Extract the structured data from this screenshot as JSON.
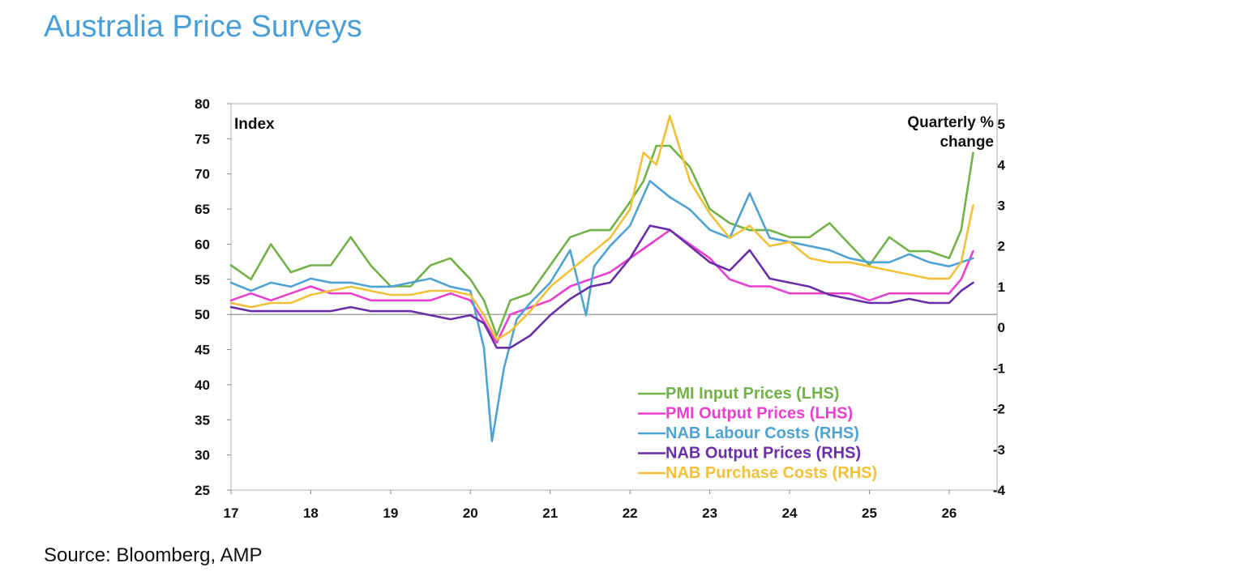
{
  "page": {
    "title": "Australia Price Surveys",
    "source": "Source: Bloomberg, AMP"
  },
  "chart_data": {
    "type": "line",
    "title": "",
    "left_axis_label": "Index",
    "right_axis_label": [
      "Quarterly %",
      "change"
    ],
    "x_ticks": [
      "17",
      "18",
      "19",
      "20",
      "21",
      "22",
      "23",
      "24",
      "25",
      "26"
    ],
    "x_range": [
      2017,
      2026.6
    ],
    "ylim_left": [
      25,
      80
    ],
    "y_ticks_left": [
      25,
      30,
      35,
      40,
      45,
      50,
      55,
      60,
      65,
      70,
      75,
      80
    ],
    "ylim_right": [
      -4,
      5.5
    ],
    "y_ticks_right": [
      -4,
      -3,
      -2,
      -1,
      0,
      1,
      2,
      3,
      4,
      5
    ],
    "grid": false,
    "legend_position": "bottom-right",
    "colors": {
      "pmi_input": "#72b248",
      "pmi_output": "#e93fcf",
      "nab_labour": "#4ea3d3",
      "nab_output": "#6a2fa6",
      "nab_purchase": "#f2c13a"
    },
    "series": [
      {
        "key": "pmi_input",
        "name": "PMI Input Prices (LHS)",
        "axis": "left",
        "color": "#72b248",
        "x": [
          2017.0,
          2017.25,
          2017.5,
          2017.75,
          2018.0,
          2018.25,
          2018.5,
          2018.75,
          2019.0,
          2019.25,
          2019.5,
          2019.75,
          2020.0,
          2020.17,
          2020.33,
          2020.5,
          2020.75,
          2021.0,
          2021.25,
          2021.5,
          2021.75,
          2022.0,
          2022.17,
          2022.33,
          2022.5,
          2022.75,
          2023.0,
          2023.25,
          2023.5,
          2023.75,
          2024.0,
          2024.25,
          2024.5,
          2024.75,
          2025.0,
          2025.25,
          2025.5,
          2025.75,
          2026.0,
          2026.15,
          2026.3
        ],
        "y": [
          57,
          55,
          60,
          56,
          57,
          57,
          61,
          57,
          54,
          54,
          57,
          58,
          55,
          52,
          47,
          52,
          53,
          57,
          61,
          62,
          62,
          66,
          69,
          74,
          74,
          71,
          65,
          63,
          62,
          62,
          61,
          61,
          63,
          60,
          57,
          61,
          59,
          59,
          58,
          62,
          73
        ]
      },
      {
        "key": "pmi_output",
        "name": "PMI Output Prices (LHS)",
        "axis": "left",
        "color": "#e93fcf",
        "x": [
          2017.0,
          2017.25,
          2017.5,
          2017.75,
          2018.0,
          2018.25,
          2018.5,
          2018.75,
          2019.0,
          2019.25,
          2019.5,
          2019.75,
          2020.0,
          2020.17,
          2020.33,
          2020.5,
          2020.75,
          2021.0,
          2021.25,
          2021.5,
          2021.75,
          2022.0,
          2022.25,
          2022.5,
          2022.75,
          2023.0,
          2023.25,
          2023.5,
          2023.75,
          2024.0,
          2024.25,
          2024.5,
          2024.75,
          2025.0,
          2025.25,
          2025.5,
          2025.75,
          2026.0,
          2026.15,
          2026.3
        ],
        "y": [
          52,
          53,
          52,
          53,
          54,
          53,
          53,
          52,
          52,
          52,
          52,
          53,
          52,
          49,
          46,
          50,
          51,
          52,
          54,
          55,
          56,
          58,
          60,
          62,
          60,
          58,
          55,
          54,
          54,
          53,
          53,
          53,
          53,
          52,
          53,
          53,
          53,
          53,
          55,
          59
        ]
      },
      {
        "key": "nab_labour",
        "name": "NAB Labour Costs (RHS)",
        "axis": "right",
        "color": "#4ea3d3",
        "x": [
          2017.0,
          2017.25,
          2017.5,
          2017.75,
          2018.0,
          2018.25,
          2018.5,
          2018.75,
          2019.0,
          2019.25,
          2019.5,
          2019.75,
          2020.0,
          2020.17,
          2020.27,
          2020.42,
          2020.58,
          2020.75,
          2021.0,
          2021.25,
          2021.45,
          2021.55,
          2021.75,
          2022.0,
          2022.25,
          2022.5,
          2022.75,
          2023.0,
          2023.25,
          2023.5,
          2023.75,
          2024.0,
          2024.25,
          2024.5,
          2024.75,
          2025.0,
          2025.25,
          2025.5,
          2025.75,
          2026.0,
          2026.15,
          2026.3
        ],
        "y": [
          1.1,
          0.9,
          1.1,
          1.0,
          1.2,
          1.1,
          1.1,
          1.0,
          1.0,
          1.1,
          1.2,
          1.0,
          0.9,
          -0.5,
          -2.8,
          -1.0,
          0.2,
          0.6,
          1.1,
          1.9,
          0.3,
          1.5,
          2.0,
          2.5,
          3.6,
          3.2,
          2.9,
          2.4,
          2.2,
          3.3,
          2.2,
          2.1,
          2.0,
          1.9,
          1.7,
          1.6,
          1.6,
          1.8,
          1.6,
          1.5,
          1.6,
          1.7
        ]
      },
      {
        "key": "nab_output",
        "name": "NAB Output Prices (RHS)",
        "axis": "right",
        "color": "#6a2fa6",
        "x": [
          2017.0,
          2017.25,
          2017.5,
          2017.75,
          2018.0,
          2018.25,
          2018.5,
          2018.75,
          2019.0,
          2019.25,
          2019.5,
          2019.75,
          2020.0,
          2020.17,
          2020.33,
          2020.5,
          2020.75,
          2021.0,
          2021.25,
          2021.5,
          2021.75,
          2022.0,
          2022.25,
          2022.5,
          2022.75,
          2023.0,
          2023.25,
          2023.5,
          2023.75,
          2024.0,
          2024.25,
          2024.5,
          2024.75,
          2025.0,
          2025.25,
          2025.5,
          2025.75,
          2026.0,
          2026.15,
          2026.3
        ],
        "y": [
          0.5,
          0.4,
          0.4,
          0.4,
          0.4,
          0.4,
          0.5,
          0.4,
          0.4,
          0.4,
          0.3,
          0.2,
          0.3,
          0.1,
          -0.5,
          -0.5,
          -0.2,
          0.3,
          0.7,
          1.0,
          1.1,
          1.7,
          2.5,
          2.4,
          2.0,
          1.6,
          1.4,
          1.9,
          1.2,
          1.1,
          1.0,
          0.8,
          0.7,
          0.6,
          0.6,
          0.7,
          0.6,
          0.6,
          0.9,
          1.1
        ]
      },
      {
        "key": "nab_purchase",
        "name": "NAB Purchase Costs (RHS)",
        "axis": "right",
        "color": "#f2c13a",
        "x": [
          2017.0,
          2017.25,
          2017.5,
          2017.75,
          2018.0,
          2018.25,
          2018.5,
          2018.75,
          2019.0,
          2019.25,
          2019.5,
          2019.75,
          2020.0,
          2020.17,
          2020.33,
          2020.5,
          2020.75,
          2021.0,
          2021.25,
          2021.5,
          2021.75,
          2022.0,
          2022.17,
          2022.33,
          2022.5,
          2022.75,
          2023.0,
          2023.25,
          2023.5,
          2023.75,
          2024.0,
          2024.25,
          2024.5,
          2024.75,
          2025.0,
          2025.25,
          2025.5,
          2025.75,
          2026.0,
          2026.15,
          2026.3
        ],
        "y": [
          0.6,
          0.5,
          0.6,
          0.6,
          0.8,
          0.9,
          1.0,
          0.9,
          0.8,
          0.8,
          0.9,
          0.9,
          0.8,
          0.3,
          -0.3,
          -0.1,
          0.4,
          1.0,
          1.4,
          1.8,
          2.2,
          2.9,
          4.3,
          4.0,
          5.2,
          3.6,
          2.8,
          2.2,
          2.5,
          2.0,
          2.1,
          1.7,
          1.6,
          1.6,
          1.5,
          1.4,
          1.3,
          1.2,
          1.2,
          1.6,
          3.0
        ]
      }
    ]
  }
}
